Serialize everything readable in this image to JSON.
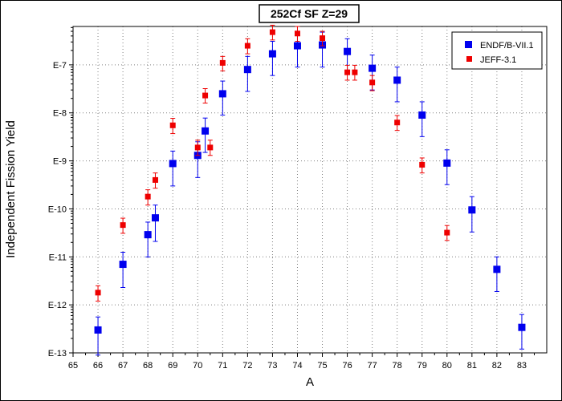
{
  "chart_data": {
    "type": "scatter",
    "title": "252Cf SF Z=29",
    "xlabel": "A",
    "ylabel": "Independent Fission Yield",
    "xlim": [
      65,
      84
    ],
    "ylim_log10": [
      -13,
      -6.2
    ],
    "yscale": "log",
    "grid": true,
    "legend_position": "top-right",
    "x_ticks": [
      "65",
      "66",
      "67",
      "68",
      "69",
      "70",
      "71",
      "72",
      "73",
      "74",
      "75",
      "76",
      "77",
      "78",
      "79",
      "80",
      "81",
      "82",
      "83"
    ],
    "y_ticks": [
      {
        "label": "E-7",
        "exp": -7
      },
      {
        "label": "E-8",
        "exp": -8
      },
      {
        "label": "E-9",
        "exp": -9
      },
      {
        "label": "E-10",
        "exp": -10
      },
      {
        "label": "E-11",
        "exp": -11
      },
      {
        "label": "E-12",
        "exp": -12
      },
      {
        "label": "E-13",
        "exp": -13
      }
    ],
    "series": [
      {
        "name": "ENDF/B-VII.1",
        "color": "#0000ee",
        "marker": "square-large",
        "points": [
          {
            "x": 66,
            "y": 3e-13,
            "lo": 9e-14,
            "hi": 5.6e-13
          },
          {
            "x": 67,
            "y": 7e-12,
            "lo": 2.3e-12,
            "hi": 1.25e-11
          },
          {
            "x": 68,
            "y": 2.9e-11,
            "lo": 1e-11,
            "hi": 5.3e-11
          },
          {
            "x": 68.3,
            "y": 6.5e-11,
            "lo": 2.1e-11,
            "hi": 1.2e-10
          },
          {
            "x": 69,
            "y": 8.8e-10,
            "lo": 3e-10,
            "hi": 1.6e-09
          },
          {
            "x": 70,
            "y": 1.3e-09,
            "lo": 4.5e-10,
            "hi": 2.5e-09
          },
          {
            "x": 70.3,
            "y": 4.2e-09,
            "lo": 1.5e-09,
            "hi": 7.8e-09
          },
          {
            "x": 71,
            "y": 2.5e-08,
            "lo": 9e-09,
            "hi": 4.6e-08
          },
          {
            "x": 72,
            "y": 8e-08,
            "lo": 2.8e-08,
            "hi": 1.5e-07
          },
          {
            "x": 73,
            "y": 1.7e-07,
            "lo": 6e-08,
            "hi": 3.1e-07
          },
          {
            "x": 74,
            "y": 2.5e-07,
            "lo": 9e-08,
            "hi": 4.6e-07
          },
          {
            "x": 75,
            "y": 2.6e-07,
            "lo": 9e-08,
            "hi": 4.8e-07
          },
          {
            "x": 76,
            "y": 1.9e-07,
            "lo": 6.8e-08,
            "hi": 3.5e-07
          },
          {
            "x": 77,
            "y": 8.5e-08,
            "lo": 3e-08,
            "hi": 1.6e-07
          },
          {
            "x": 78,
            "y": 4.8e-08,
            "lo": 1.7e-08,
            "hi": 9e-08
          },
          {
            "x": 79,
            "y": 9e-09,
            "lo": 3.2e-09,
            "hi": 1.7e-08
          },
          {
            "x": 80,
            "y": 9e-10,
            "lo": 3.2e-10,
            "hi": 1.7e-09
          },
          {
            "x": 81,
            "y": 9.5e-11,
            "lo": 3.3e-11,
            "hi": 1.8e-10
          },
          {
            "x": 82,
            "y": 5.5e-12,
            "lo": 1.9e-12,
            "hi": 1e-11
          },
          {
            "x": 83,
            "y": 3.4e-13,
            "lo": 1.2e-13,
            "hi": 6.3e-13
          }
        ]
      },
      {
        "name": "JEFF-3.1",
        "color": "#ee0000",
        "marker": "square-small",
        "points": [
          {
            "x": 66,
            "y": 1.8e-12,
            "lo": 1.2e-12,
            "hi": 2.5e-12
          },
          {
            "x": 67,
            "y": 4.6e-11,
            "lo": 3.1e-11,
            "hi": 6.4e-11
          },
          {
            "x": 68,
            "y": 1.8e-10,
            "lo": 1.2e-10,
            "hi": 2.5e-10
          },
          {
            "x": 68.3,
            "y": 4e-10,
            "lo": 2.7e-10,
            "hi": 5.6e-10
          },
          {
            "x": 69,
            "y": 5.5e-09,
            "lo": 3.7e-09,
            "hi": 7.7e-09
          },
          {
            "x": 70,
            "y": 1.9e-09,
            "lo": 1.3e-09,
            "hi": 2.7e-09
          },
          {
            "x": 70.5,
            "y": 1.9e-09,
            "lo": 1.3e-09,
            "hi": 2.7e-09
          },
          {
            "x": 70.3,
            "y": 2.3e-08,
            "lo": 1.6e-08,
            "hi": 3.2e-08
          },
          {
            "x": 71,
            "y": 1.1e-07,
            "lo": 7.5e-08,
            "hi": 1.5e-07
          },
          {
            "x": 72,
            "y": 2.5e-07,
            "lo": 1.7e-07,
            "hi": 3.5e-07
          },
          {
            "x": 73,
            "y": 4.8e-07,
            "lo": 3.3e-07,
            "hi": 6.7e-07
          },
          {
            "x": 74,
            "y": 4.5e-07,
            "lo": 3.1e-07,
            "hi": 6.3e-07
          },
          {
            "x": 75,
            "y": 3.6e-07,
            "lo": 2.5e-07,
            "hi": 5e-07
          },
          {
            "x": 76,
            "y": 7e-08,
            "lo": 4.8e-08,
            "hi": 9.8e-08
          },
          {
            "x": 76.3,
            "y": 7e-08,
            "lo": 4.8e-08,
            "hi": 9.8e-08
          },
          {
            "x": 77,
            "y": 4.3e-08,
            "lo": 2.9e-08,
            "hi": 6e-08
          },
          {
            "x": 78,
            "y": 6.3e-09,
            "lo": 4.3e-09,
            "hi": 8.8e-09
          },
          {
            "x": 79,
            "y": 8.3e-10,
            "lo": 5.6e-10,
            "hi": 1.15e-09
          },
          {
            "x": 80,
            "y": 3.2e-11,
            "lo": 2.2e-11,
            "hi": 4.5e-11
          }
        ]
      }
    ]
  }
}
